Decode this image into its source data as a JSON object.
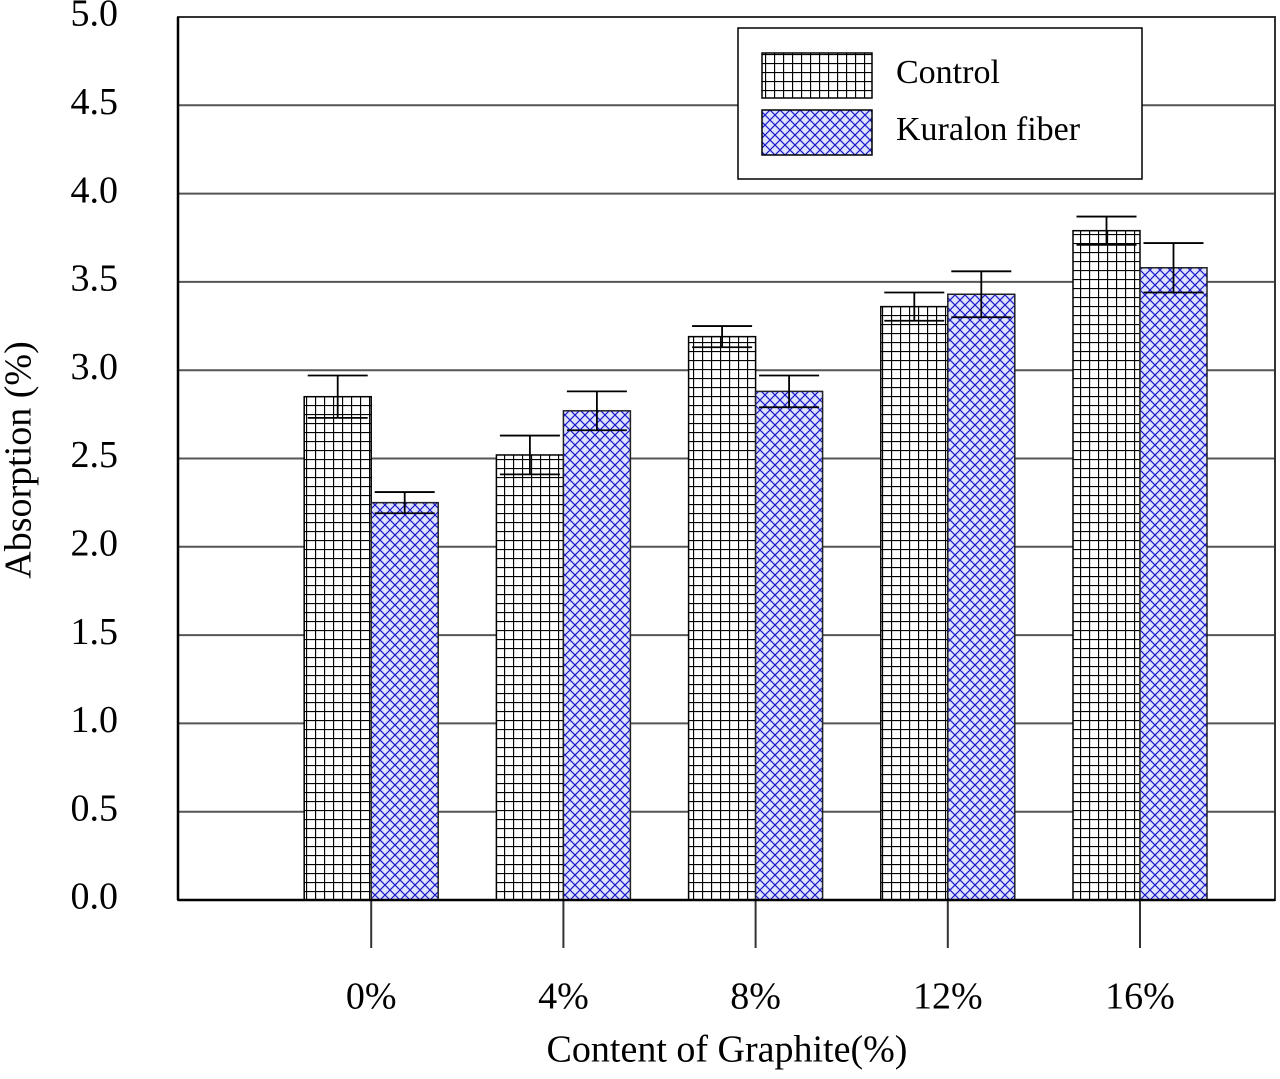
{
  "chart_data": {
    "type": "bar",
    "x_label": "Content of Graphite(%)",
    "y_label": "Absorption (%)",
    "categories": [
      "0%",
      "4%",
      "8%",
      "12%",
      "16%"
    ],
    "series": [
      {
        "name": "Control",
        "color": "#000000",
        "pattern": "grid",
        "values": [
          2.85,
          2.52,
          3.19,
          3.36,
          3.79
        ],
        "errors": [
          0.12,
          0.11,
          0.06,
          0.08,
          0.08
        ]
      },
      {
        "name": "Kuralon fiber",
        "color": "#0000cc",
        "pattern": "crosshatch",
        "values": [
          2.25,
          2.77,
          2.88,
          3.43,
          3.58
        ],
        "errors": [
          0.06,
          0.11,
          0.09,
          0.13,
          0.14
        ]
      }
    ],
    "ylim": [
      0,
      5
    ],
    "yticks": [
      {
        "value": 0,
        "label": "0.0"
      },
      {
        "value": 0.5,
        "label": "0.5"
      },
      {
        "value": 1,
        "label": "1.0"
      },
      {
        "value": 1.5,
        "label": "1.5"
      },
      {
        "value": 2,
        "label": "2.0"
      },
      {
        "value": 2.5,
        "label": "2.5"
      },
      {
        "value": 3,
        "label": "3.0"
      },
      {
        "value": 3.5,
        "label": "3.5"
      },
      {
        "value": 4,
        "label": "4.0"
      },
      {
        "value": 4.5,
        "label": "4.5"
      },
      {
        "value": 5,
        "label": "5.0"
      }
    ],
    "grid": true,
    "legend": "top-right"
  }
}
